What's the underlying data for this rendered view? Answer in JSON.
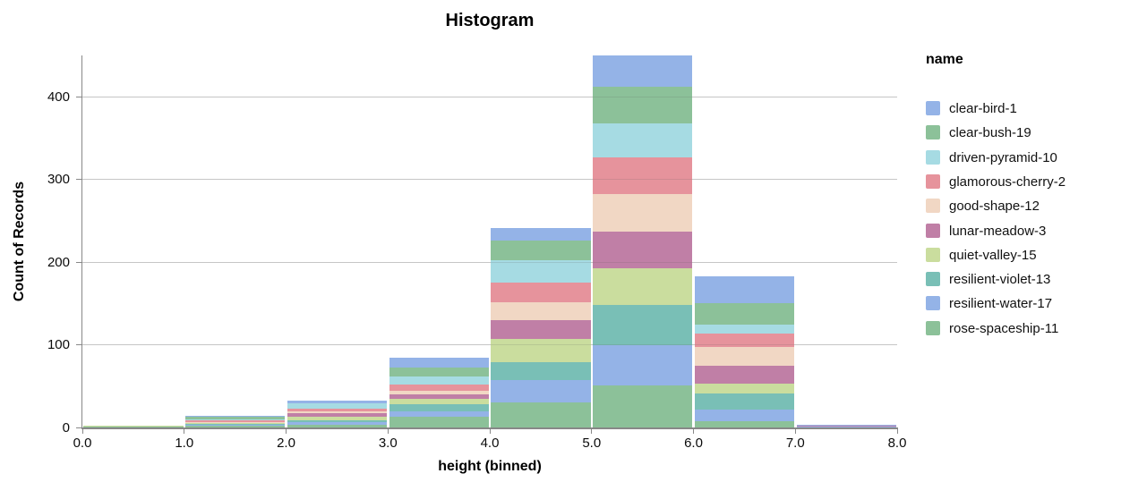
{
  "title": "Histogram",
  "legend": {
    "title": "name",
    "items": [
      {
        "label": "clear-bird-1",
        "color": "#94b3e7"
      },
      {
        "label": "clear-bush-19",
        "color": "#8cc199"
      },
      {
        "label": "driven-pyramid-10",
        "color": "#a6dbe3"
      },
      {
        "label": "glamorous-cherry-2",
        "color": "#e6939c"
      },
      {
        "label": "good-shape-12",
        "color": "#f1d7c4"
      },
      {
        "label": "lunar-meadow-3",
        "color": "#c07fa6"
      },
      {
        "label": "quiet-valley-15",
        "color": "#cadd9e"
      },
      {
        "label": "resilient-violet-13",
        "color": "#79bfb6"
      },
      {
        "label": "resilient-water-17",
        "color": "#94b3e7"
      },
      {
        "label": "rose-spaceship-11",
        "color": "#8cc199"
      }
    ]
  },
  "chart_data": {
    "type": "bar",
    "stacked": true,
    "title": "Histogram",
    "xlabel": "height (binned)",
    "ylabel": "Count of Records",
    "bin_edges": [
      0,
      1,
      2,
      3,
      4,
      5,
      6,
      7,
      8
    ],
    "x_tick_labels": [
      "0.0",
      "1.0",
      "2.0",
      "3.0",
      "4.0",
      "5.0",
      "6.0",
      "7.0",
      "8.0"
    ],
    "y_ticks": [
      0,
      100,
      200,
      300,
      400
    ],
    "ylim": [
      0,
      450
    ],
    "xlim": [
      0,
      8
    ],
    "grid": true,
    "legend_position": "right",
    "stack_order_bottom_to_top": "reverse-of-legend",
    "bin_totals": [
      2,
      14,
      32,
      84,
      241,
      450,
      183,
      3
    ],
    "series": [
      {
        "name": "clear-bird-1",
        "color": "#94b3e7",
        "values": [
          0,
          1,
          3,
          11,
          15,
          38,
          33,
          1
        ]
      },
      {
        "name": "clear-bush-19",
        "color": "#8cc199",
        "values": [
          0,
          3,
          0,
          11,
          24,
          44,
          26,
          0
        ]
      },
      {
        "name": "driven-pyramid-10",
        "color": "#a6dbe3",
        "values": [
          0,
          1,
          6,
          10,
          27,
          41,
          10,
          0
        ]
      },
      {
        "name": "glamorous-cherry-2",
        "color": "#e6939c",
        "values": [
          0,
          2,
          4,
          8,
          24,
          45,
          17,
          0
        ]
      },
      {
        "name": "good-shape-12",
        "color": "#f1d7c4",
        "values": [
          0,
          1,
          2,
          4,
          21,
          45,
          22,
          0
        ]
      },
      {
        "name": "lunar-meadow-3",
        "color": "#c07fa6",
        "values": [
          0,
          1,
          4,
          5,
          23,
          44,
          22,
          1
        ]
      },
      {
        "name": "quiet-valley-15",
        "color": "#cadd9e",
        "values": [
          1,
          1,
          4,
          7,
          28,
          45,
          12,
          0
        ]
      },
      {
        "name": "resilient-violet-13",
        "color": "#79bfb6",
        "values": [
          0,
          1,
          3,
          8,
          22,
          48,
          19,
          0
        ]
      },
      {
        "name": "resilient-water-17",
        "color": "#94b3e7",
        "values": [
          0,
          1,
          3,
          7,
          27,
          49,
          14,
          1
        ]
      },
      {
        "name": "rose-spaceship-11",
        "color": "#8cc199",
        "values": [
          1,
          2,
          3,
          13,
          30,
          51,
          8,
          0
        ]
      }
    ]
  }
}
